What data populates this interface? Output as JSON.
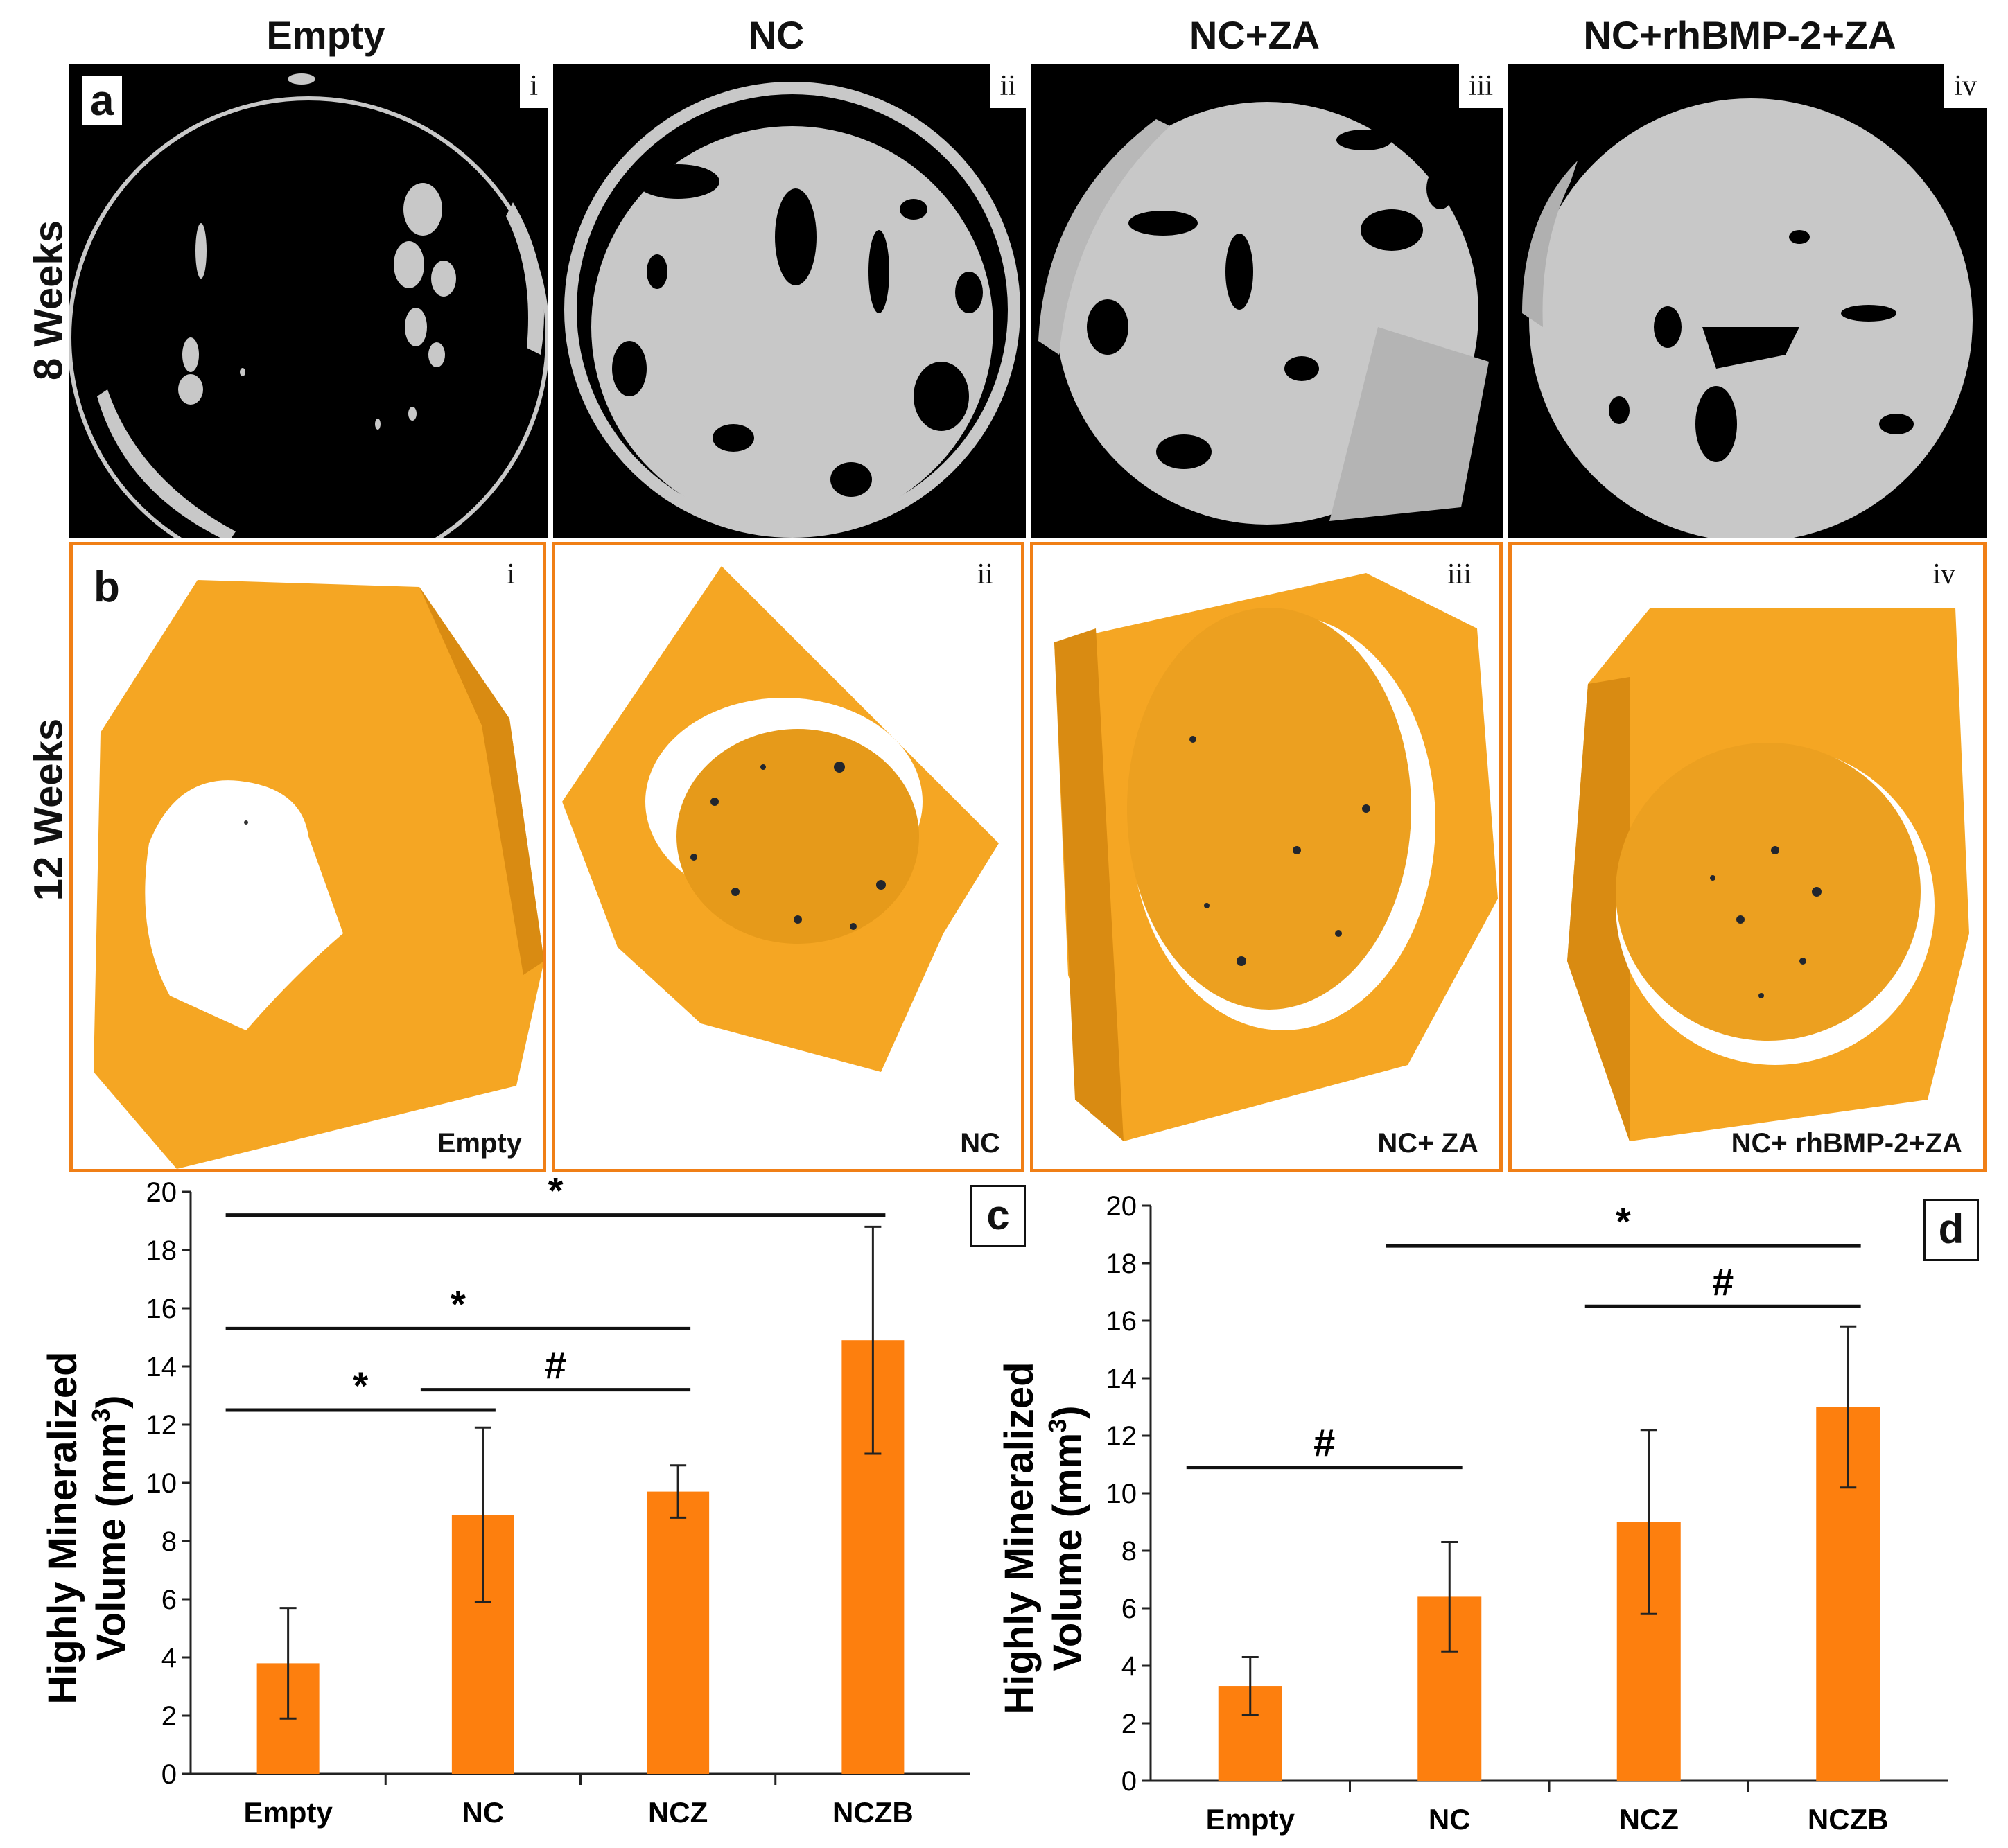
{
  "columns": [
    "Empty",
    "NC",
    "NC+ZA",
    "NC+rhBMP-2+ZA"
  ],
  "rows": {
    "top": "8 Weeks",
    "bottom": "12 Weeks"
  },
  "panel_letters": {
    "a": "a",
    "b": "b",
    "c": "c",
    "d": "d"
  },
  "roman": [
    "i",
    "ii",
    "iii",
    "iv"
  ],
  "row_b_labels": [
    "Empty",
    "NC",
    "NC+ ZA",
    "NC+ rhBMP-2+ZA"
  ],
  "colors": {
    "bar": "#fd7f0e",
    "bone_gray": "#c8c8c8",
    "bone_orange": "#f5a623",
    "border": "#f07f16"
  },
  "chart_data": [
    {
      "id": "c",
      "type": "bar",
      "categories": [
        "Empty",
        "NC",
        "NCZ",
        "NCZB"
      ],
      "values": [
        3.8,
        8.9,
        9.7,
        14.9
      ],
      "errors": [
        1.9,
        3.0,
        0.9,
        3.9
      ],
      "ylabel_line1": "Highly Mineralized",
      "ylabel_line2": "Volume (mm",
      "ylabel_sup": "3",
      "ylabel_end": ")",
      "ylim": [
        0,
        20
      ],
      "yticks": [
        "0",
        "2",
        "4",
        "6",
        "8",
        "10",
        "12",
        "14",
        "16",
        "18",
        "20"
      ],
      "significance": [
        {
          "symbol": "*",
          "from": 0,
          "to": 3,
          "y": 19.2
        },
        {
          "symbol": "*",
          "from": 0,
          "to": 2,
          "y": 15.3
        },
        {
          "symbol": "*",
          "from": 0,
          "to": 1,
          "y": 12.5
        },
        {
          "symbol": "#",
          "from": 1,
          "to": 2,
          "y": 13.2
        }
      ]
    },
    {
      "id": "d",
      "type": "bar",
      "categories": [
        "Empty",
        "NC",
        "NCZ",
        "NCZB"
      ],
      "values": [
        3.3,
        6.4,
        9.0,
        13.0
      ],
      "errors": [
        1.0,
        1.9,
        3.2,
        2.8
      ],
      "ylabel_line1": "Highly Mineralized",
      "ylabel_line2": "Volume (mm",
      "ylabel_sup": "3",
      "ylabel_end": ")",
      "ylim": [
        0,
        20
      ],
      "yticks": [
        "0",
        "2",
        "4",
        "6",
        "8",
        "10",
        "12",
        "14",
        "16",
        "18",
        "20"
      ],
      "significance": [
        {
          "symbol": "*",
          "from": 1,
          "to": 3,
          "y": 18.6
        },
        {
          "symbol": "#",
          "from": 2,
          "to": 3,
          "y": 16.5
        },
        {
          "symbol": "#",
          "from": 0,
          "to": 1,
          "y": 10.9
        }
      ]
    }
  ]
}
